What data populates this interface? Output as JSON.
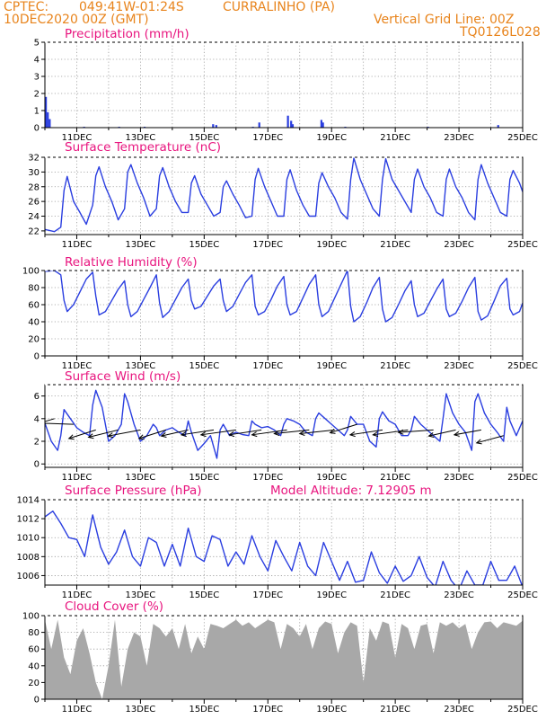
{
  "header": {
    "source": "CPTEC:",
    "coords": "049:41W-01:24S",
    "location": "CURRALINHO (PA)",
    "date": "10DEC2020 00Z (GMT)",
    "grid_note": "Vertical Grid Line: 00Z",
    "code": "TQ0126L028"
  },
  "colors": {
    "header": "#e8841c",
    "title": "#e8147e",
    "line": "#2a3ee0",
    "bar": "#2a3ee0",
    "cloud": "#a8a8a8",
    "arrow": "#000000"
  },
  "chart_data": [
    {
      "type": "bar",
      "title": "Precipitation (mm/h)",
      "ylim": [
        0,
        5
      ],
      "yticks": [
        0,
        1,
        2,
        3,
        4,
        5
      ],
      "xlim": [
        0,
        15
      ],
      "xtick_labels": [
        "11DEC",
        "13DEC",
        "15DEC",
        "17DEC",
        "19DEC",
        "21DEC",
        "23DEC",
        "25DEC"
      ],
      "x": [
        0.0,
        0.06,
        0.12,
        1.2,
        2.3,
        3.1,
        5.25,
        5.35,
        6.5,
        6.7,
        7.6,
        7.7,
        7.75,
        8.65,
        8.7,
        9.4,
        12.0,
        14.2
      ],
      "values": [
        1.8,
        0.9,
        0.5,
        0.05,
        0.05,
        0.05,
        0.2,
        0.15,
        0.05,
        0.3,
        0.7,
        0.4,
        0.2,
        0.45,
        0.3,
        0.05,
        0.05,
        0.15
      ]
    },
    {
      "type": "line",
      "title": "Surface Temperature (nC)",
      "ylim": [
        21.5,
        32
      ],
      "yticks": [
        22,
        24,
        26,
        28,
        30,
        32
      ],
      "xlim": [
        0,
        15
      ],
      "xtick_labels": [
        "11DEC",
        "13DEC",
        "15DEC",
        "17DEC",
        "19DEC",
        "21DEC",
        "23DEC",
        "25DEC"
      ],
      "x": [
        0,
        0.3,
        0.5,
        0.6,
        0.7,
        0.9,
        1.1,
        1.3,
        1.5,
        1.6,
        1.7,
        1.9,
        2.1,
        2.3,
        2.5,
        2.6,
        2.7,
        2.9,
        3.1,
        3.3,
        3.5,
        3.6,
        3.7,
        3.9,
        4.1,
        4.3,
        4.5,
        4.6,
        4.7,
        4.9,
        5.1,
        5.3,
        5.5,
        5.6,
        5.7,
        5.9,
        6.1,
        6.3,
        6.5,
        6.6,
        6.7,
        6.9,
        7.1,
        7.3,
        7.5,
        7.6,
        7.7,
        7.9,
        8.1,
        8.3,
        8.5,
        8.6,
        8.7,
        8.9,
        9.1,
        9.3,
        9.5,
        9.6,
        9.7,
        9.9,
        10.1,
        10.3,
        10.5,
        10.6,
        10.7,
        10.9,
        11.1,
        11.3,
        11.5,
        11.6,
        11.7,
        11.9,
        12.1,
        12.3,
        12.5,
        12.6,
        12.7,
        12.9,
        13.1,
        13.3,
        13.5,
        13.6,
        13.7,
        13.9,
        14.1,
        14.3,
        14.5,
        14.6,
        14.7,
        14.9,
        15.0
      ],
      "values": [
        22.2,
        21.9,
        22.5,
        27.5,
        29.4,
        26.0,
        24.5,
        22.9,
        25.5,
        29.5,
        30.7,
        28.0,
        26.0,
        23.5,
        25.0,
        30.0,
        31.0,
        28.5,
        26.5,
        24.0,
        25.0,
        29.5,
        30.6,
        28.0,
        26.0,
        24.5,
        24.5,
        28.5,
        29.5,
        27.0,
        25.5,
        24.0,
        24.5,
        28.0,
        28.8,
        27.0,
        25.5,
        23.8,
        24.0,
        29.0,
        30.5,
        28.0,
        26.0,
        24.0,
        24.0,
        29.0,
        30.3,
        27.5,
        25.5,
        24.0,
        24.0,
        28.5,
        29.9,
        28.0,
        26.5,
        24.5,
        23.6,
        29.0,
        31.9,
        29.0,
        27.0,
        25.0,
        24.0,
        29.0,
        31.8,
        29.0,
        27.5,
        26.0,
        24.5,
        29.0,
        30.4,
        28.0,
        26.5,
        24.5,
        24.0,
        29.0,
        30.4,
        28.0,
        26.5,
        24.5,
        23.5,
        29.0,
        31.0,
        28.5,
        26.5,
        24.5,
        24.0,
        29.0,
        30.2,
        28.5,
        27.3
      ]
    },
    {
      "type": "line",
      "title": "Relative Humidity (%)",
      "ylim": [
        0,
        100
      ],
      "yticks": [
        0,
        20,
        40,
        60,
        80,
        100
      ],
      "xlim": [
        0,
        15
      ],
      "xtick_labels": [
        "11DEC",
        "13DEC",
        "15DEC",
        "17DEC",
        "19DEC",
        "21DEC",
        "23DEC",
        "25DEC"
      ],
      "x": [
        0,
        0.3,
        0.5,
        0.6,
        0.7,
        0.9,
        1.1,
        1.3,
        1.5,
        1.6,
        1.7,
        1.9,
        2.1,
        2.3,
        2.5,
        2.6,
        2.7,
        2.9,
        3.1,
        3.3,
        3.5,
        3.6,
        3.7,
        3.9,
        4.1,
        4.3,
        4.5,
        4.6,
        4.7,
        4.9,
        5.1,
        5.3,
        5.5,
        5.6,
        5.7,
        5.9,
        6.1,
        6.3,
        6.5,
        6.6,
        6.7,
        6.9,
        7.1,
        7.3,
        7.5,
        7.6,
        7.7,
        7.9,
        8.1,
        8.3,
        8.5,
        8.6,
        8.7,
        8.9,
        9.1,
        9.3,
        9.5,
        9.6,
        9.7,
        9.9,
        10.1,
        10.3,
        10.5,
        10.6,
        10.7,
        10.9,
        11.1,
        11.3,
        11.5,
        11.6,
        11.7,
        11.9,
        12.1,
        12.3,
        12.5,
        12.6,
        12.7,
        12.9,
        13.1,
        13.3,
        13.5,
        13.6,
        13.7,
        13.9,
        14.1,
        14.3,
        14.5,
        14.6,
        14.7,
        14.9,
        15.0
      ],
      "values": [
        99,
        100,
        95,
        65,
        52,
        60,
        75,
        90,
        98,
        70,
        48,
        52,
        65,
        78,
        88,
        60,
        46,
        52,
        66,
        80,
        95,
        62,
        45,
        52,
        66,
        80,
        90,
        65,
        55,
        58,
        70,
        82,
        90,
        65,
        52,
        58,
        72,
        86,
        95,
        58,
        48,
        52,
        66,
        82,
        93,
        60,
        48,
        52,
        68,
        84,
        95,
        60,
        46,
        52,
        68,
        84,
        100,
        58,
        40,
        46,
        62,
        80,
        92,
        55,
        40,
        45,
        60,
        76,
        88,
        60,
        46,
        50,
        64,
        78,
        90,
        55,
        46,
        50,
        64,
        80,
        92,
        52,
        42,
        47,
        64,
        82,
        91,
        55,
        48,
        52,
        62
      ]
    },
    {
      "type": "line",
      "title": "Surface Wind (m/s)",
      "ylim": [
        -0.3,
        7
      ],
      "yticks": [
        0,
        2,
        4,
        6
      ],
      "xlim": [
        0,
        15
      ],
      "xtick_labels": [
        "11DEC",
        "13DEC",
        "15DEC",
        "17DEC",
        "19DEC",
        "21DEC",
        "23DEC",
        "25DEC"
      ],
      "x": [
        0,
        0.2,
        0.4,
        0.5,
        0.6,
        0.8,
        1.0,
        1.2,
        1.4,
        1.5,
        1.6,
        1.8,
        2.0,
        2.2,
        2.4,
        2.5,
        2.6,
        2.8,
        3.0,
        3.2,
        3.4,
        3.5,
        3.6,
        3.8,
        4.0,
        4.2,
        4.4,
        4.5,
        4.6,
        4.8,
        5.0,
        5.2,
        5.4,
        5.5,
        5.6,
        5.8,
        6.0,
        6.2,
        6.4,
        6.5,
        6.6,
        6.8,
        7.0,
        7.2,
        7.4,
        7.5,
        7.6,
        7.8,
        8.0,
        8.2,
        8.4,
        8.5,
        8.6,
        8.8,
        9.0,
        9.2,
        9.4,
        9.5,
        9.6,
        9.8,
        10.0,
        10.2,
        10.4,
        10.5,
        10.6,
        10.8,
        11.0,
        11.2,
        11.4,
        11.5,
        11.6,
        11.8,
        12.0,
        12.2,
        12.4,
        12.5,
        12.6,
        12.8,
        13.0,
        13.2,
        13.4,
        13.5,
        13.6,
        13.8,
        14.0,
        14.2,
        14.4,
        14.5,
        14.6,
        14.8,
        15.0
      ],
      "values": [
        3.6,
        2.0,
        1.2,
        2.5,
        4.8,
        4.0,
        3.2,
        2.8,
        2.5,
        5.2,
        6.5,
        5.0,
        2.0,
        2.5,
        3.5,
        6.2,
        5.5,
        3.5,
        2.0,
        2.5,
        3.5,
        3.2,
        2.5,
        3.0,
        3.2,
        2.8,
        2.5,
        3.8,
        2.8,
        1.2,
        1.8,
        2.5,
        0.5,
        3.0,
        3.5,
        2.5,
        2.8,
        2.6,
        2.5,
        3.8,
        3.5,
        3.2,
        3.3,
        3.0,
        2.5,
        3.5,
        4.0,
        3.8,
        3.5,
        2.8,
        2.5,
        4.0,
        4.5,
        4.0,
        3.5,
        3.0,
        2.5,
        3.0,
        4.2,
        3.5,
        3.5,
        2.0,
        1.5,
        4.0,
        4.6,
        3.8,
        3.5,
        2.5,
        2.5,
        3.0,
        4.2,
        3.5,
        3.0,
        2.5,
        2.0,
        4.0,
        6.2,
        4.5,
        3.5,
        2.8,
        1.2,
        5.5,
        6.2,
        4.5,
        3.5,
        2.8,
        2.0,
        5.0,
        3.8,
        2.5,
        3.8
      ],
      "arrows": {
        "x": [
          0.3,
          0.9,
          1.6,
          2.3,
          3.0,
          3.8,
          4.5,
          5.3,
          6.0,
          6.8,
          7.6,
          8.3,
          9.1,
          9.8,
          10.6,
          11.4,
          12.2,
          12.9,
          13.7,
          14.4
        ],
        "y": [
          4.0,
          3.5,
          3.0,
          3.0,
          3.0,
          3.0,
          3.0,
          3.0,
          3.0,
          3.0,
          3.0,
          3.0,
          3.0,
          3.5,
          3.0,
          3.0,
          3.0,
          3.0,
          3.0,
          2.5
        ],
        "u": [
          -1.2,
          -1.3,
          -1.0,
          -1.1,
          -1.2,
          -1.0,
          -1.0,
          -1.2,
          -1.3,
          -1.2,
          -1.3,
          -1.3,
          -1.3,
          -1.0,
          -1.2,
          -1.3,
          -1.3,
          -1.0,
          -1.0,
          -1.0
        ],
        "v": [
          -0.8,
          0.1,
          -0.7,
          -0.6,
          -0.5,
          -0.7,
          -0.5,
          -0.4,
          -0.4,
          -0.4,
          -0.4,
          -0.3,
          -0.3,
          -0.7,
          -0.4,
          -0.4,
          -0.2,
          -0.5,
          -0.4,
          -0.6
        ]
      }
    },
    {
      "type": "line",
      "title": "Surface Pressure (hPa)",
      "annotation": "Model Altitude: 7.12905 m",
      "ylim": [
        1005,
        1014
      ],
      "yticks": [
        1006,
        1008,
        1010,
        1012,
        1014
      ],
      "xlim": [
        0,
        15
      ],
      "xtick_labels": [
        "11DEC",
        "13DEC",
        "15DEC",
        "17DEC",
        "19DEC",
        "21DEC",
        "23DEC",
        "25DEC"
      ],
      "x": [
        0,
        0.25,
        0.5,
        0.75,
        1.0,
        1.25,
        1.5,
        1.75,
        2.0,
        2.25,
        2.5,
        2.75,
        3.0,
        3.25,
        3.5,
        3.75,
        4.0,
        4.25,
        4.5,
        4.75,
        5.0,
        5.25,
        5.5,
        5.75,
        6.0,
        6.25,
        6.5,
        6.75,
        7.0,
        7.25,
        7.5,
        7.75,
        8.0,
        8.25,
        8.5,
        8.75,
        9.0,
        9.25,
        9.5,
        9.75,
        10.0,
        10.25,
        10.5,
        10.75,
        11.0,
        11.25,
        11.5,
        11.75,
        12.0,
        12.25,
        12.5,
        12.75,
        13.0,
        13.25,
        13.5,
        13.75,
        14.0,
        14.25,
        14.5,
        14.75,
        15.0
      ],
      "values": [
        1012.2,
        1012.8,
        1011.5,
        1010.0,
        1009.8,
        1008.0,
        1012.4,
        1009.0,
        1007.2,
        1008.5,
        1010.8,
        1008.0,
        1007.0,
        1010.0,
        1009.5,
        1007.0,
        1009.3,
        1007.0,
        1011.0,
        1008.0,
        1007.5,
        1010.2,
        1009.8,
        1007.0,
        1008.5,
        1007.2,
        1010.2,
        1008.0,
        1006.5,
        1009.7,
        1008.0,
        1006.5,
        1009.5,
        1007.0,
        1006.0,
        1009.5,
        1007.5,
        1005.5,
        1007.5,
        1005.3,
        1005.5,
        1008.5,
        1006.3,
        1005.2,
        1007.0,
        1005.4,
        1006.0,
        1008.0,
        1005.8,
        1004.8,
        1007.5,
        1005.5,
        1004.5,
        1006.5,
        1005.0,
        1005.0,
        1007.5,
        1005.5,
        1005.5,
        1007.0,
        1004.8
      ]
    },
    {
      "type": "area",
      "title": "Cloud Cover (%)",
      "ylim": [
        0,
        100
      ],
      "yticks": [
        0,
        20,
        40,
        60,
        80,
        100
      ],
      "xlim": [
        0,
        15
      ],
      "xtick_labels": [
        "11DEC",
        "13DEC",
        "15DEC",
        "17DEC",
        "19DEC",
        "21DEC",
        "23DEC",
        "25DEC"
      ],
      "x": [
        0,
        0.2,
        0.4,
        0.6,
        0.8,
        1.0,
        1.2,
        1.4,
        1.6,
        1.8,
        2.0,
        2.2,
        2.4,
        2.6,
        2.8,
        3.0,
        3.2,
        3.4,
        3.6,
        3.8,
        4.0,
        4.2,
        4.4,
        4.6,
        4.8,
        5.0,
        5.2,
        5.4,
        5.6,
        5.8,
        6.0,
        6.2,
        6.4,
        6.6,
        6.8,
        7.0,
        7.2,
        7.4,
        7.6,
        7.8,
        8.0,
        8.2,
        8.4,
        8.6,
        8.8,
        9.0,
        9.2,
        9.4,
        9.6,
        9.8,
        10.0,
        10.2,
        10.4,
        10.6,
        10.8,
        11.0,
        11.2,
        11.4,
        11.6,
        11.8,
        12.0,
        12.2,
        12.4,
        12.6,
        12.8,
        13.0,
        13.2,
        13.4,
        13.6,
        13.8,
        14.0,
        14.2,
        14.4,
        14.6,
        14.8,
        15.0
      ],
      "values": [
        95,
        60,
        95,
        50,
        30,
        70,
        85,
        55,
        20,
        0,
        40,
        95,
        15,
        60,
        80,
        75,
        40,
        90,
        85,
        75,
        85,
        60,
        90,
        55,
        75,
        60,
        90,
        88,
        85,
        90,
        95,
        88,
        92,
        85,
        90,
        95,
        92,
        60,
        90,
        85,
        75,
        90,
        60,
        85,
        93,
        90,
        55,
        80,
        92,
        88,
        20,
        85,
        70,
        93,
        90,
        50,
        90,
        85,
        60,
        88,
        90,
        55,
        92,
        88,
        92,
        85,
        90,
        60,
        80,
        92,
        93,
        85,
        92,
        90,
        88,
        94
      ]
    }
  ]
}
